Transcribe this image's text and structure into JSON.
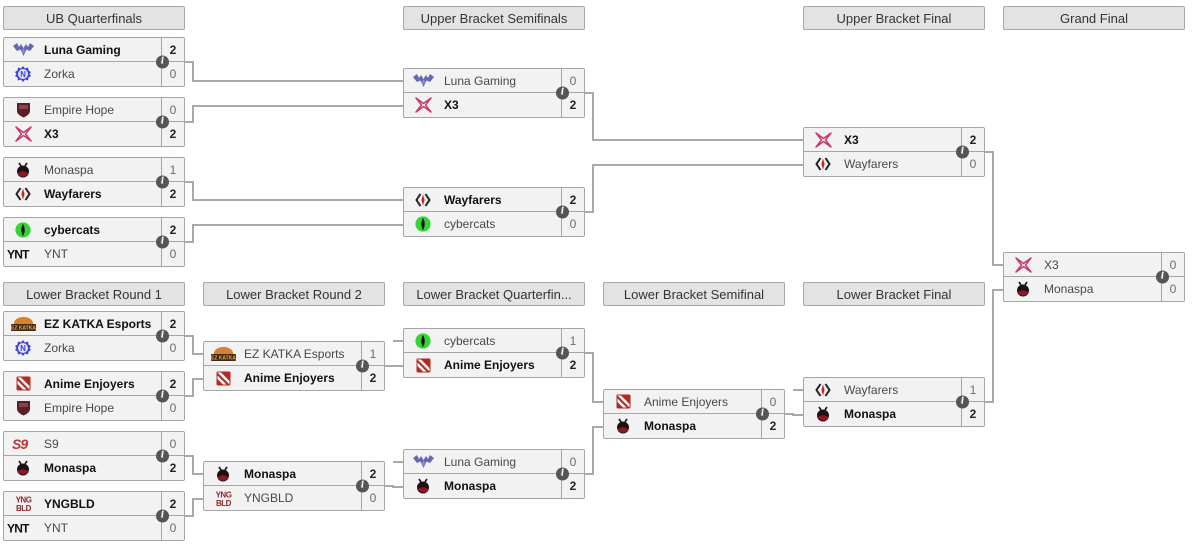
{
  "info_icon": {
    "glyph": "i"
  },
  "colors": {
    "header_bg": "#e3e3e3",
    "box_bg": "#f2f2f2",
    "border": "#a6a6a6",
    "connector": "#a9a9a9",
    "winner_text": "#111111",
    "loser_text": "#484848",
    "info_icon_bg": "#555555"
  },
  "headers": [
    {
      "id": "ub-qf",
      "label": "UB Quarterfinals"
    },
    {
      "id": "ub-sf",
      "label": "Upper Bracket Semifinals"
    },
    {
      "id": "ub-f",
      "label": "Upper Bracket Final"
    },
    {
      "id": "gf",
      "label": "Grand Final"
    },
    {
      "id": "lb-r1",
      "label": "Lower Bracket Round 1"
    },
    {
      "id": "lb-r2",
      "label": "Lower Bracket Round 2"
    },
    {
      "id": "lb-qf",
      "label": "Lower Bracket Quarterfin..."
    },
    {
      "id": "lb-sf",
      "label": "Lower Bracket Semifinal"
    },
    {
      "id": "lb-f",
      "label": "Lower Bracket Final"
    }
  ],
  "logos": {
    "luna": {
      "team": "Luna Gaming",
      "colors": [
        "#6468b2",
        "#8d92cf"
      ]
    },
    "zorka": {
      "team": "Zorka",
      "colors": [
        "#4040d0",
        "#dfe5fb"
      ]
    },
    "empire": {
      "team": "Empire Hope",
      "colors": [
        "#582026",
        "#8d4046"
      ]
    },
    "x3": {
      "team": "X3",
      "colors": [
        "#c93a6b"
      ]
    },
    "monaspa": {
      "team": "Monaspa",
      "colors": [
        "#1b1116",
        "#8e1722"
      ]
    },
    "wayfarers": {
      "team": "Wayfarers",
      "colors": [
        "#222222",
        "#cc2222"
      ]
    },
    "cybercats": {
      "team": "cybercats",
      "colors": [
        "#35d435",
        "#111111"
      ]
    },
    "ynt": {
      "team": "YNT",
      "colors": [
        "#111111"
      ]
    },
    "ezkatka": {
      "team": "EZ KATKA Esports",
      "colors": [
        "#d9822b",
        "#3f2a14",
        "#f0a93c"
      ]
    },
    "anime": {
      "team": "Anime Enjoyers",
      "colors": [
        "#b52a20",
        "#ffffff"
      ]
    },
    "s9": {
      "team": "S9",
      "colors": [
        "#c13236"
      ]
    },
    "yngbld": {
      "team": "YNGBLD",
      "colors": [
        "#8a272b"
      ]
    }
  },
  "matches": [
    {
      "id": "ub-qf-1",
      "top": {
        "team": "Luna Gaming",
        "logo": "luna",
        "score": "2",
        "winner": true
      },
      "bottom": {
        "team": "Zorka",
        "logo": "zorka",
        "score": "0",
        "winner": false
      }
    },
    {
      "id": "ub-qf-2",
      "top": {
        "team": "Empire Hope",
        "logo": "empire",
        "score": "0",
        "winner": false
      },
      "bottom": {
        "team": "X3",
        "logo": "x3",
        "score": "2",
        "winner": true
      }
    },
    {
      "id": "ub-qf-3",
      "top": {
        "team": "Monaspa",
        "logo": "monaspa",
        "score": "1",
        "winner": false
      },
      "bottom": {
        "team": "Wayfarers",
        "logo": "wayfarers",
        "score": "2",
        "winner": true
      }
    },
    {
      "id": "ub-qf-4",
      "top": {
        "team": "cybercats",
        "logo": "cybercats",
        "score": "2",
        "winner": true
      },
      "bottom": {
        "team": "YNT",
        "logo": "ynt",
        "score": "0",
        "winner": false
      }
    },
    {
      "id": "ub-sf-1",
      "top": {
        "team": "Luna Gaming",
        "logo": "luna",
        "score": "0",
        "winner": false
      },
      "bottom": {
        "team": "X3",
        "logo": "x3",
        "score": "2",
        "winner": true
      }
    },
    {
      "id": "ub-sf-2",
      "top": {
        "team": "Wayfarers",
        "logo": "wayfarers",
        "score": "2",
        "winner": true
      },
      "bottom": {
        "team": "cybercats",
        "logo": "cybercats",
        "score": "0",
        "winner": false
      }
    },
    {
      "id": "ub-f-1",
      "top": {
        "team": "X3",
        "logo": "x3",
        "score": "2",
        "winner": true
      },
      "bottom": {
        "team": "Wayfarers",
        "logo": "wayfarers",
        "score": "0",
        "winner": false
      }
    },
    {
      "id": "gf-1",
      "top": {
        "team": "X3",
        "logo": "x3",
        "score": "0",
        "winner": false
      },
      "bottom": {
        "team": "Monaspa",
        "logo": "monaspa",
        "score": "0",
        "winner": false
      }
    },
    {
      "id": "lb-r1-1",
      "top": {
        "team": "EZ KATKA Esports",
        "logo": "ezkatka",
        "score": "2",
        "winner": true
      },
      "bottom": {
        "team": "Zorka",
        "logo": "zorka",
        "score": "0",
        "winner": false
      }
    },
    {
      "id": "lb-r1-2",
      "top": {
        "team": "Anime Enjoyers",
        "logo": "anime",
        "score": "2",
        "winner": true
      },
      "bottom": {
        "team": "Empire Hope",
        "logo": "empire",
        "score": "0",
        "winner": false
      }
    },
    {
      "id": "lb-r1-3",
      "top": {
        "team": "S9",
        "logo": "s9",
        "score": "0",
        "winner": false
      },
      "bottom": {
        "team": "Monaspa",
        "logo": "monaspa",
        "score": "2",
        "winner": true
      }
    },
    {
      "id": "lb-r1-4",
      "top": {
        "team": "YNGBLD",
        "logo": "yngbld",
        "score": "2",
        "winner": true
      },
      "bottom": {
        "team": "YNT",
        "logo": "ynt",
        "score": "0",
        "winner": false
      }
    },
    {
      "id": "lb-r2-1",
      "top": {
        "team": "EZ KATKA Esports",
        "logo": "ezkatka",
        "score": "1",
        "winner": false
      },
      "bottom": {
        "team": "Anime Enjoyers",
        "logo": "anime",
        "score": "2",
        "winner": true
      }
    },
    {
      "id": "lb-r2-2",
      "top": {
        "team": "Monaspa",
        "logo": "monaspa",
        "score": "2",
        "winner": true
      },
      "bottom": {
        "team": "YNGBLD",
        "logo": "yngbld",
        "score": "0",
        "winner": false
      }
    },
    {
      "id": "lb-qf-1",
      "top": {
        "team": "cybercats",
        "logo": "cybercats",
        "score": "1",
        "winner": false
      },
      "bottom": {
        "team": "Anime Enjoyers",
        "logo": "anime",
        "score": "2",
        "winner": true
      }
    },
    {
      "id": "lb-qf-2",
      "top": {
        "team": "Luna Gaming",
        "logo": "luna",
        "score": "0",
        "winner": false
      },
      "bottom": {
        "team": "Monaspa",
        "logo": "monaspa",
        "score": "2",
        "winner": true
      }
    },
    {
      "id": "lb-sf-1",
      "top": {
        "team": "Anime Enjoyers",
        "logo": "anime",
        "score": "0",
        "winner": false
      },
      "bottom": {
        "team": "Monaspa",
        "logo": "monaspa",
        "score": "2",
        "winner": true
      }
    },
    {
      "id": "lb-f-1",
      "top": {
        "team": "Wayfarers",
        "logo": "wayfarers",
        "score": "1",
        "winner": false
      },
      "bottom": {
        "team": "Monaspa",
        "logo": "monaspa",
        "score": "2",
        "winner": true
      }
    }
  ]
}
